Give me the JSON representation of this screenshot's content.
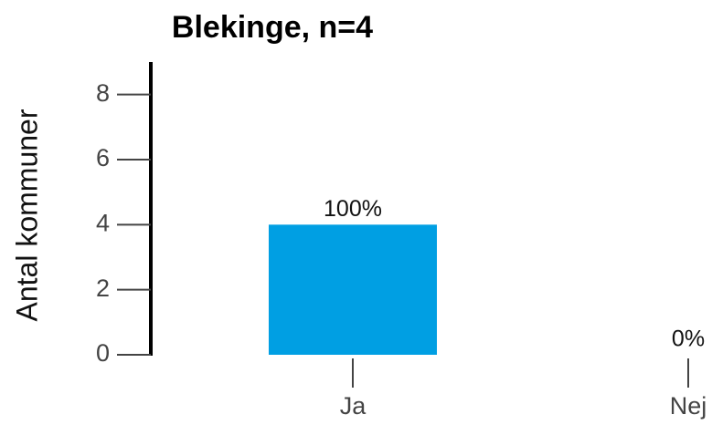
{
  "chart_data": {
    "type": "bar",
    "title": "Blekinge, n=4",
    "ylabel": "Antal kommuner",
    "categories": [
      "Ja",
      "Nej"
    ],
    "values": [
      4,
      0
    ],
    "percent_labels": [
      "100%",
      "0%"
    ],
    "color": "#009fe3",
    "ylim": [
      0,
      9
    ],
    "yticks": [
      0,
      2,
      4,
      6,
      8
    ]
  }
}
